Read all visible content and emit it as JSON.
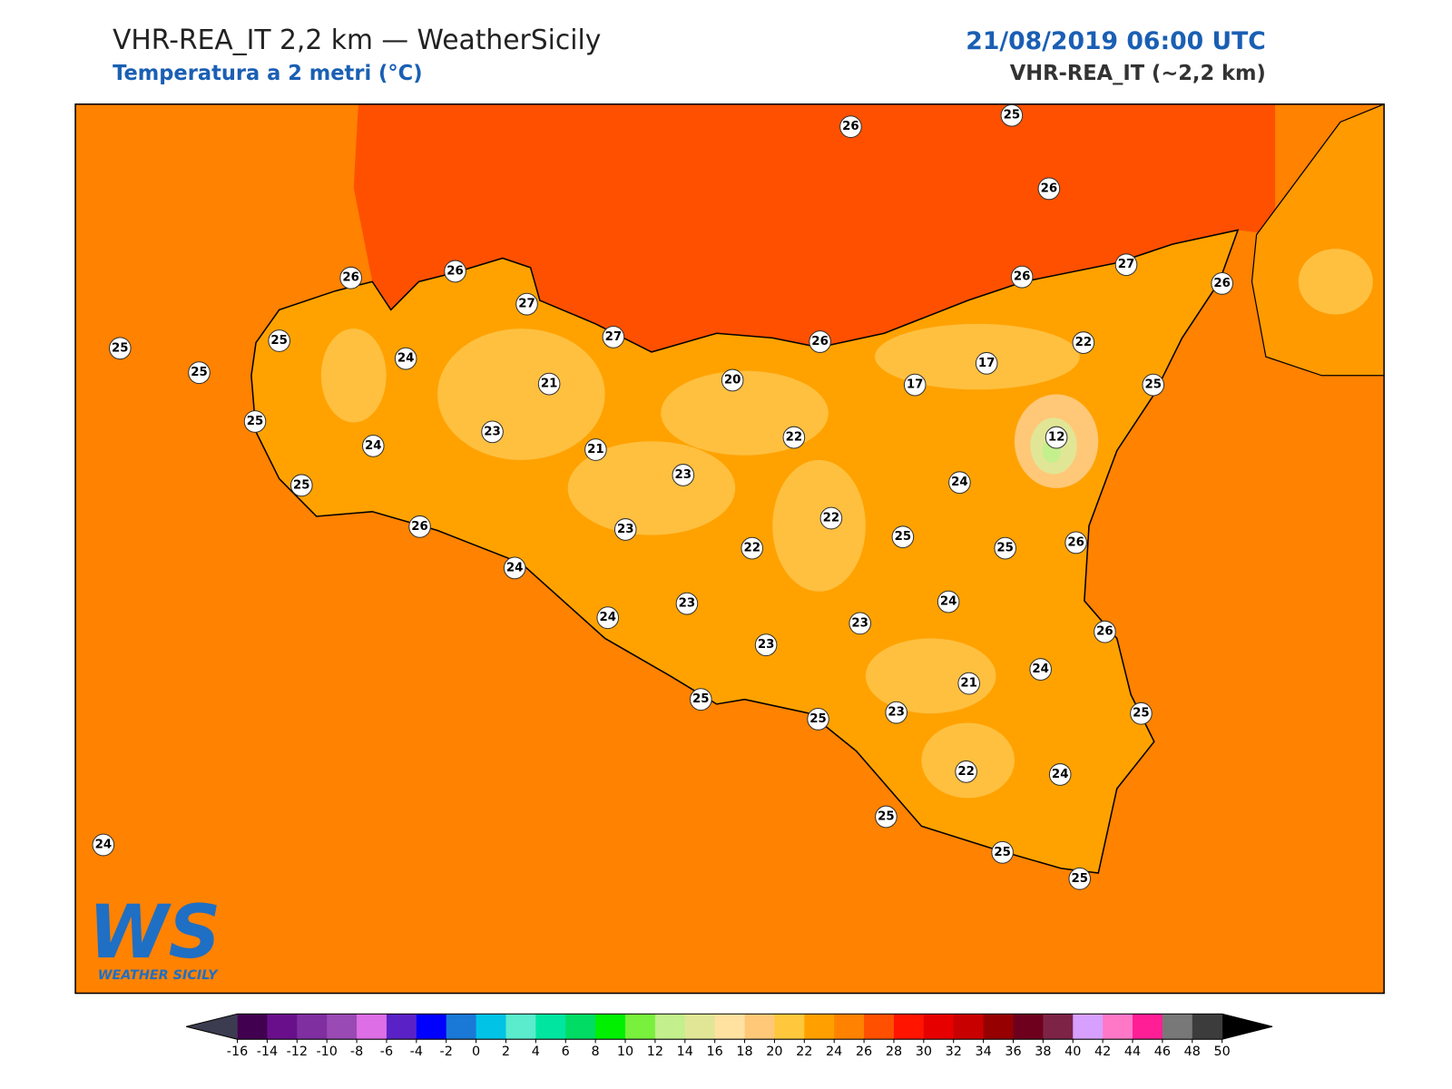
{
  "header": {
    "title": "VHR-REA_IT 2,2 km — WeatherSicily",
    "subtitle": "Temperatura a 2 metri (°C)",
    "datetime": "21/08/2019 06:00 UTC",
    "model": "VHR-REA_IT (~2,2 km)"
  },
  "map": {
    "stations": [
      26,
      25,
      26,
      26,
      26,
      27,
      25,
      25,
      25,
      24,
      27,
      21,
      20,
      26,
      26,
      27,
      26,
      22,
      17,
      17,
      25,
      12,
      22,
      25,
      24,
      23,
      21,
      23,
      24,
      25,
      26,
      23,
      22,
      22,
      25,
      25,
      26,
      24,
      23,
      24,
      23,
      24,
      23,
      26,
      21,
      24,
      25,
      25,
      23,
      25,
      22,
      24,
      25,
      25,
      25,
      24
    ]
  },
  "logo": {
    "text": "WS",
    "caption": "WEATHER SICILY"
  },
  "colorbar": {
    "ticks": [
      -16,
      -14,
      -12,
      -10,
      -8,
      -6,
      -4,
      -2,
      0,
      2,
      4,
      6,
      8,
      10,
      12,
      14,
      16,
      18,
      20,
      22,
      24,
      26,
      28,
      30,
      32,
      34,
      36,
      38,
      40,
      42,
      44,
      46,
      48,
      50
    ],
    "colors": [
      "#420050",
      "#6a0f8c",
      "#7f2fa0",
      "#9a4ab4",
      "#dd6ee6",
      "#5a22c6",
      "#0000ff",
      "#1a78d6",
      "#00c3e6",
      "#5aeccd",
      "#00e6a0",
      "#00dc64",
      "#00f000",
      "#78f03c",
      "#c3f08c",
      "#e1e696",
      "#ffe1a0",
      "#ffc878",
      "#ffc83c",
      "#ffa000",
      "#ff8200",
      "#ff5000",
      "#ff1400",
      "#e60000",
      "#c80000",
      "#960000",
      "#6e001e",
      "#7d2346",
      "#d7a0ff",
      "#ff78c8",
      "#ff1e96",
      "#787878",
      "#3c3c3c"
    ],
    "under": "#3c3c50",
    "over": "#000000"
  }
}
